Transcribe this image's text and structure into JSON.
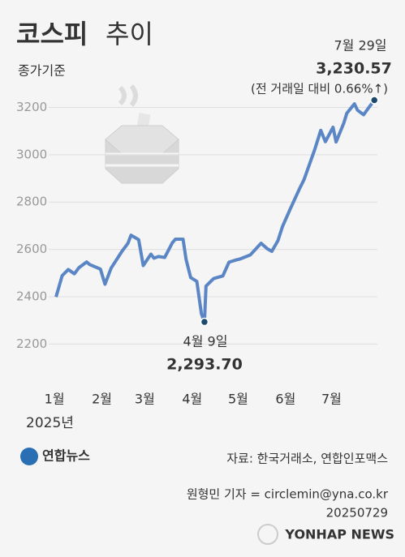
{
  "chart_data": {
    "type": "line",
    "title": "코스피",
    "title_suffix": "추이",
    "subtitle": "종가기준",
    "x_axis_label": "2025년",
    "x": [
      2,
      6,
      10,
      14,
      17,
      22,
      24,
      31,
      34,
      38,
      45,
      49,
      51,
      56,
      59,
      64,
      66,
      69,
      73,
      78,
      80,
      85,
      87,
      90,
      94,
      97,
      99,
      100,
      105,
      111,
      115,
      120,
      122,
      129,
      136,
      140,
      143,
      147,
      150,
      155,
      161,
      164,
      171,
      175,
      178,
      183,
      185,
      190,
      192,
      197,
      199,
      203,
      206,
      210
    ],
    "series": [
      {
        "name": "코스피",
        "color": "#5b86c5",
        "values": [
          2399,
          2489,
          2515,
          2497,
          2523,
          2547,
          2536,
          2517,
          2453,
          2521,
          2591,
          2626,
          2660,
          2641,
          2532,
          2580,
          2563,
          2570,
          2566,
          2628,
          2643,
          2643,
          2557,
          2481,
          2465,
          2328,
          2293.7,
          2445,
          2477,
          2488,
          2546,
          2556,
          2559,
          2577,
          2626,
          2603,
          2592,
          2637,
          2697,
          2770,
          2855,
          2894,
          3021,
          3103,
          3055,
          3116,
          3054,
          3133,
          3175,
          3215,
          3188,
          3169,
          3196,
          3230.57
        ],
        "value_labels": [
          null,
          null,
          null,
          null,
          null,
          null,
          null,
          null,
          null,
          null,
          null,
          null,
          null,
          null,
          null,
          null,
          null,
          null,
          null,
          null,
          null,
          null,
          null,
          null,
          null,
          null,
          "2,293.70",
          null,
          null,
          null,
          null,
          null,
          null,
          null,
          null,
          null,
          null,
          null,
          null,
          null,
          null,
          null,
          null,
          null,
          null,
          null,
          null,
          null,
          null,
          null,
          null,
          null,
          null,
          "3,230.57"
        ]
      }
    ],
    "annotations": [
      "4월 9일",
      "7월 29일",
      "(전 거래일 대비 0.66%↑)"
    ],
    "xlim": [
      -24,
      212
    ],
    "xticks": [
      {
        "value": 1,
        "label": "1월"
      },
      {
        "value": 32,
        "label": "2월"
      },
      {
        "value": 60,
        "label": "3월"
      },
      {
        "value": 91,
        "label": "4월"
      },
      {
        "value": 121,
        "label": "5월"
      },
      {
        "value": 152,
        "label": "6월"
      },
      {
        "value": 182,
        "label": "7월"
      }
    ],
    "ylim": [
      2150,
      3270
    ],
    "yticks": [
      2200,
      2400,
      2600,
      2800,
      3000,
      3200
    ],
    "grid": true,
    "marker_color": "#1d4a6c",
    "source": "자료: 한국거래소, 연합인포맥스",
    "credit": "원형민 기자 = circlemin@yna.co.kr",
    "date": "20250729",
    "logo": "연합뉴스",
    "watermark": "YONHAP NEWS"
  }
}
